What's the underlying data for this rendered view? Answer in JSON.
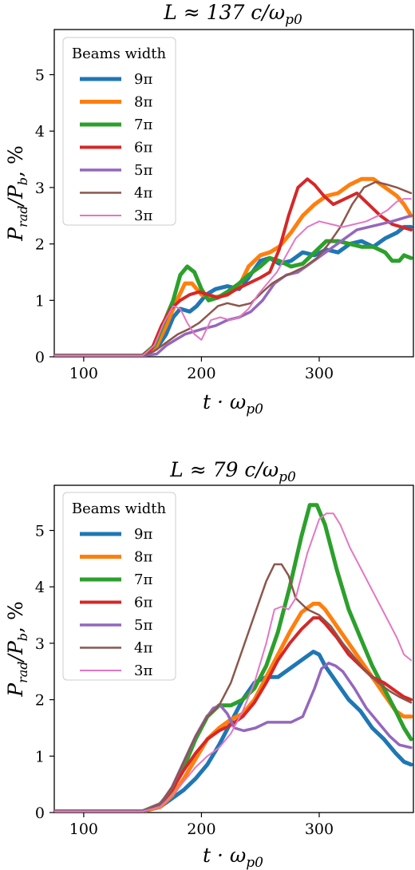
{
  "chart_data": [
    {
      "type": "line",
      "title": "L ≈ 137 c/ω",
      "title_sub": "p0",
      "xlabel": "t · ω",
      "xlabel_sub": "p0",
      "ylabel": "P",
      "ylabel_sub1": "rad",
      "ylabel_mid": "/P",
      "ylabel_sub2": "b",
      "ylabel_tail": ", %",
      "xlim": [
        75,
        380
      ],
      "ylim": [
        0,
        5.8
      ],
      "xticks": [
        100,
        200,
        300
      ],
      "yticks": [
        0,
        1,
        2,
        3,
        4,
        5
      ],
      "legend_title": "Beams width",
      "legend_position": "upper-left",
      "series": [
        {
          "name": "9π",
          "color": "#1f77b4",
          "width": 5,
          "x": [
            75,
            150,
            162,
            170,
            176,
            182,
            190,
            196,
            204,
            212,
            222,
            232,
            240,
            250,
            258,
            266,
            276,
            286,
            296,
            306,
            316,
            326,
            336,
            346,
            356,
            366,
            372,
            378
          ],
          "y": [
            0.02,
            0.02,
            0.15,
            0.4,
            0.7,
            0.85,
            0.8,
            0.9,
            1.1,
            1.2,
            1.25,
            1.2,
            1.4,
            1.7,
            1.75,
            1.65,
            1.7,
            1.85,
            1.8,
            1.9,
            1.85,
            2.0,
            2.05,
            1.95,
            2.1,
            2.2,
            2.3,
            2.3
          ]
        },
        {
          "name": "8π",
          "color": "#ff7f0e",
          "width": 5,
          "x": [
            75,
            150,
            162,
            170,
            178,
            186,
            192,
            200,
            210,
            222,
            232,
            240,
            250,
            258,
            266,
            276,
            286,
            296,
            306,
            316,
            326,
            336,
            346,
            356,
            366,
            372,
            378
          ],
          "y": [
            0.02,
            0.02,
            0.2,
            0.55,
            0.95,
            1.3,
            1.3,
            1.1,
            1.05,
            1.1,
            1.25,
            1.6,
            1.8,
            1.85,
            1.95,
            2.2,
            2.5,
            2.7,
            2.85,
            2.9,
            3.05,
            3.15,
            3.15,
            3.0,
            2.85,
            2.7,
            2.5
          ]
        },
        {
          "name": "7π",
          "color": "#2ca02c",
          "width": 5,
          "x": [
            75,
            150,
            160,
            168,
            176,
            182,
            188,
            194,
            200,
            206,
            214,
            222,
            232,
            240,
            250,
            258,
            266,
            276,
            286,
            296,
            306,
            316,
            326,
            336,
            346,
            356,
            362,
            368,
            372,
            378
          ],
          "y": [
            0.02,
            0.02,
            0.2,
            0.6,
            1.0,
            1.45,
            1.6,
            1.5,
            1.2,
            1.0,
            1.05,
            1.15,
            1.3,
            1.45,
            1.6,
            1.75,
            1.7,
            1.6,
            1.65,
            1.85,
            2.05,
            2.05,
            2.0,
            1.95,
            1.95,
            1.85,
            1.7,
            1.7,
            1.8,
            1.75
          ]
        },
        {
          "name": "6π",
          "color": "#d62728",
          "width": 4,
          "x": [
            75,
            150,
            158,
            166,
            174,
            182,
            190,
            198,
            206,
            214,
            222,
            230,
            240,
            250,
            258,
            266,
            274,
            282,
            290,
            296,
            304,
            312,
            322,
            332,
            342,
            352,
            362,
            370,
            378
          ],
          "y": [
            0.02,
            0.02,
            0.15,
            0.55,
            0.85,
            1.0,
            1.1,
            1.15,
            1.1,
            1.05,
            1.1,
            1.2,
            1.3,
            1.4,
            1.5,
            1.9,
            2.5,
            3.0,
            3.15,
            3.05,
            2.85,
            2.7,
            2.8,
            2.9,
            2.7,
            2.5,
            2.35,
            2.3,
            2.25
          ]
        },
        {
          "name": "5π",
          "color": "#9467bd",
          "width": 3.5,
          "x": [
            75,
            150,
            162,
            170,
            178,
            186,
            194,
            202,
            212,
            222,
            232,
            242,
            252,
            262,
            272,
            282,
            292,
            302,
            312,
            322,
            332,
            342,
            352,
            362,
            370,
            378
          ],
          "y": [
            0.02,
            0.02,
            0.05,
            0.2,
            0.3,
            0.4,
            0.45,
            0.5,
            0.55,
            0.65,
            0.7,
            0.8,
            1.0,
            1.3,
            1.45,
            1.5,
            1.65,
            1.8,
            1.95,
            2.1,
            2.25,
            2.3,
            2.35,
            2.4,
            2.45,
            2.5
          ]
        },
        {
          "name": "4π",
          "color": "#8c564b",
          "width": 2.5,
          "x": [
            75,
            150,
            160,
            170,
            180,
            190,
            198,
            206,
            214,
            222,
            232,
            242,
            252,
            260,
            268,
            278,
            288,
            298,
            308,
            318,
            328,
            338,
            348,
            358,
            366,
            372,
            378
          ],
          "y": [
            0.02,
            0.02,
            0.1,
            0.25,
            0.4,
            0.5,
            0.6,
            0.75,
            0.9,
            0.95,
            0.9,
            0.95,
            1.15,
            1.3,
            1.4,
            1.5,
            1.6,
            1.75,
            2.0,
            2.3,
            2.7,
            3.0,
            3.1,
            3.05,
            3.0,
            2.95,
            2.9
          ]
        },
        {
          "name": "3π",
          "color": "#e377c2",
          "width": 2,
          "x": [
            75,
            150,
            160,
            168,
            176,
            182,
            188,
            194,
            200,
            208,
            216,
            224,
            232,
            240,
            248,
            256,
            264,
            272,
            280,
            290,
            300,
            310,
            320,
            330,
            340,
            350,
            358,
            366,
            372,
            378
          ],
          "y": [
            0.02,
            0.02,
            0.2,
            0.6,
            0.9,
            0.85,
            0.6,
            0.4,
            0.3,
            0.65,
            0.7,
            0.65,
            0.7,
            0.85,
            1.1,
            1.3,
            1.5,
            1.8,
            2.1,
            2.3,
            2.4,
            2.35,
            2.3,
            2.35,
            2.4,
            2.5,
            2.6,
            2.75,
            2.8,
            2.8
          ]
        }
      ]
    },
    {
      "type": "line",
      "title": "L ≈ 79 c/ω",
      "title_sub": "p0",
      "xlabel": "t · ω",
      "xlabel_sub": "p0",
      "ylabel": "P",
      "ylabel_sub1": "rad",
      "ylabel_mid": "/P",
      "ylabel_sub2": "b",
      "ylabel_tail": ", %",
      "xlim": [
        75,
        380
      ],
      "ylim": [
        0,
        5.8
      ],
      "xticks": [
        100,
        200,
        300
      ],
      "yticks": [
        0,
        1,
        2,
        3,
        4,
        5
      ],
      "legend_title": "Beams width",
      "legend_position": "upper-left",
      "series": [
        {
          "name": "9π",
          "color": "#1f77b4",
          "width": 5,
          "x": [
            75,
            150,
            165,
            175,
            185,
            195,
            205,
            215,
            225,
            235,
            245,
            255,
            265,
            275,
            285,
            295,
            300,
            305,
            315,
            325,
            335,
            345,
            355,
            365,
            372,
            378
          ],
          "y": [
            0.02,
            0.02,
            0.1,
            0.25,
            0.4,
            0.6,
            0.85,
            1.2,
            1.6,
            2.0,
            2.3,
            2.4,
            2.4,
            2.55,
            2.7,
            2.85,
            2.8,
            2.6,
            2.3,
            2.0,
            1.8,
            1.5,
            1.3,
            1.05,
            0.9,
            0.85
          ]
        },
        {
          "name": "8π",
          "color": "#ff7f0e",
          "width": 5,
          "x": [
            75,
            150,
            165,
            175,
            185,
            195,
            205,
            215,
            225,
            235,
            245,
            255,
            265,
            275,
            285,
            295,
            300,
            305,
            315,
            325,
            335,
            345,
            355,
            365,
            372,
            378
          ],
          "y": [
            0.02,
            0.02,
            0.1,
            0.3,
            0.6,
            0.95,
            1.3,
            1.5,
            1.65,
            1.75,
            2.0,
            2.4,
            2.8,
            3.2,
            3.55,
            3.7,
            3.7,
            3.6,
            3.3,
            3.0,
            2.7,
            2.4,
            2.1,
            1.8,
            1.7,
            1.7
          ]
        },
        {
          "name": "7π",
          "color": "#2ca02c",
          "width": 5,
          "x": [
            75,
            150,
            165,
            175,
            185,
            195,
            205,
            215,
            225,
            235,
            245,
            255,
            265,
            275,
            285,
            292,
            298,
            305,
            315,
            325,
            335,
            345,
            355,
            365,
            372,
            378
          ],
          "y": [
            0.02,
            0.02,
            0.15,
            0.4,
            0.8,
            1.3,
            1.7,
            1.9,
            1.9,
            2.0,
            2.2,
            2.6,
            3.2,
            4.0,
            4.9,
            5.45,
            5.45,
            5.1,
            4.3,
            3.6,
            3.1,
            2.6,
            2.2,
            1.8,
            1.5,
            1.3
          ]
        },
        {
          "name": "6π",
          "color": "#d62728",
          "width": 4,
          "x": [
            75,
            150,
            165,
            175,
            185,
            195,
            205,
            215,
            225,
            235,
            245,
            255,
            265,
            275,
            285,
            295,
            300,
            305,
            315,
            325,
            335,
            345,
            355,
            365,
            372,
            378
          ],
          "y": [
            0.02,
            0.02,
            0.15,
            0.4,
            0.75,
            1.05,
            1.3,
            1.45,
            1.55,
            1.7,
            1.95,
            2.3,
            2.7,
            3.0,
            3.25,
            3.45,
            3.45,
            3.35,
            3.1,
            2.8,
            2.6,
            2.4,
            2.3,
            2.15,
            2.05,
            2.0
          ]
        },
        {
          "name": "5π",
          "color": "#9467bd",
          "width": 3.5,
          "x": [
            75,
            150,
            165,
            175,
            185,
            195,
            203,
            210,
            216,
            222,
            228,
            236,
            246,
            256,
            266,
            276,
            286,
            296,
            302,
            308,
            314,
            320,
            330,
            340,
            350,
            360,
            368,
            378
          ],
          "y": [
            0.02,
            0.02,
            0.15,
            0.45,
            0.9,
            1.35,
            1.65,
            1.85,
            1.9,
            1.75,
            1.5,
            1.45,
            1.5,
            1.6,
            1.6,
            1.6,
            1.7,
            2.2,
            2.55,
            2.65,
            2.6,
            2.5,
            2.2,
            1.85,
            1.6,
            1.35,
            1.2,
            1.15
          ]
        },
        {
          "name": "4π",
          "color": "#8c564b",
          "width": 2.5,
          "x": [
            75,
            150,
            165,
            175,
            185,
            195,
            205,
            215,
            225,
            235,
            245,
            255,
            262,
            268,
            274,
            280,
            290,
            300,
            310,
            320,
            330,
            340,
            350,
            360,
            368,
            378
          ],
          "y": [
            0.02,
            0.02,
            0.15,
            0.45,
            0.9,
            1.35,
            1.7,
            1.9,
            2.3,
            2.9,
            3.5,
            4.1,
            4.4,
            4.4,
            4.2,
            3.8,
            3.6,
            3.5,
            3.3,
            3.0,
            2.75,
            2.5,
            2.3,
            2.15,
            2.05,
            1.95
          ]
        },
        {
          "name": "3π",
          "color": "#e377c2",
          "width": 2,
          "x": [
            75,
            150,
            165,
            175,
            185,
            195,
            205,
            215,
            225,
            235,
            245,
            255,
            262,
            268,
            274,
            280,
            290,
            300,
            306,
            312,
            318,
            326,
            336,
            346,
            356,
            366,
            372,
            378
          ],
          "y": [
            0.02,
            0.02,
            0.1,
            0.3,
            0.55,
            0.8,
            1.0,
            1.15,
            1.4,
            1.8,
            2.3,
            3.0,
            3.6,
            3.65,
            3.6,
            3.8,
            4.6,
            5.2,
            5.3,
            5.3,
            5.1,
            4.7,
            4.3,
            3.9,
            3.5,
            3.1,
            2.8,
            2.7
          ]
        }
      ]
    }
  ]
}
